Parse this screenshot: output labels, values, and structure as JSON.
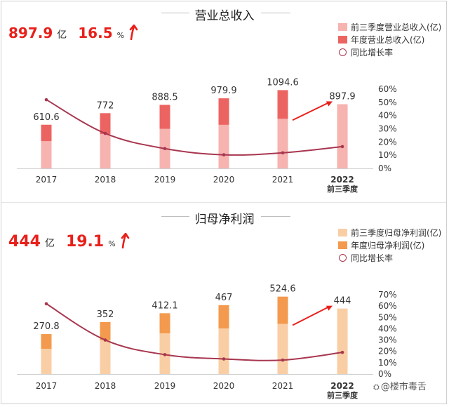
{
  "chart_data": [
    {
      "type": "bar",
      "title": "营业总收入",
      "headline": {
        "value": "897.9",
        "unit": "亿",
        "growth": "16.5",
        "growth_unit": "%"
      },
      "categories": [
        "2017",
        "2018",
        "2019",
        "2020",
        "2021",
        "2022"
      ],
      "category_sub": [
        "",
        "",
        "",
        "",
        "",
        "前三季度"
      ],
      "series": [
        {
          "name": "前三季度营业总收入(亿)",
          "values": [
            382,
            480,
            554,
            610,
            694,
            897.9
          ],
          "color": "#f6b3b0"
        },
        {
          "name": "年度营业总收入(亿)",
          "values": [
            610.6,
            772,
            888.5,
            979.9,
            1094.6,
            null
          ],
          "color": "#ec6461"
        },
        {
          "name": "同比增长率",
          "values": [
            52,
            26.5,
            15,
            10.3,
            11.8,
            16.5
          ],
          "color": "#a8364f",
          "type": "line",
          "axis": "right"
        }
      ],
      "data_labels": [
        "610.6",
        "772",
        "888.5",
        "979.9",
        "1094.6",
        "897.9"
      ],
      "y_right_ticks": [
        "0%",
        "10%",
        "20%",
        "30%",
        "40%",
        "50%",
        "60%"
      ],
      "y_right_range": [
        0,
        60
      ],
      "y_left_range": [
        0,
        1550
      ],
      "grid": false,
      "legend_position": "top-right",
      "annotation_color": "#e8201b"
    },
    {
      "type": "bar",
      "title": "归母净利润",
      "headline": {
        "value": "444",
        "unit": "亿",
        "growth": "19.1",
        "growth_unit": "%"
      },
      "categories": [
        "2017",
        "2018",
        "2019",
        "2020",
        "2021",
        "2022"
      ],
      "category_sub": [
        "",
        "",
        "",
        "",
        "",
        "前三季度"
      ],
      "series": [
        {
          "name": "前三季度归母净利润(亿)",
          "values": [
            171,
            229,
            276,
            309,
            340,
            444
          ],
          "color": "#f9cea5"
        },
        {
          "name": "年度归母净利润(亿)",
          "values": [
            270.8,
            352,
            412.1,
            467,
            524.6,
            null
          ],
          "color": "#f39a4e"
        },
        {
          "name": "同比增长率",
          "values": [
            62,
            30,
            17.1,
            13.3,
            12.3,
            19.1
          ],
          "color": "#a8364f",
          "type": "line",
          "axis": "right"
        }
      ],
      "data_labels": [
        "270.8",
        "352",
        "412.1",
        "467",
        "524.6",
        "444"
      ],
      "y_right_ticks": [
        "0%",
        "10%",
        "20%",
        "30%",
        "40%",
        "50%",
        "60%",
        "70%"
      ],
      "y_right_range": [
        0,
        70
      ],
      "y_left_range": [
        0,
        780
      ],
      "grid": false,
      "legend_position": "top-right",
      "annotation_color": "#e8201b"
    }
  ],
  "watermark": "@楼市毒舌",
  "colors": {
    "accent": "#e8201b",
    "line": "#a8364f",
    "text": "#333333"
  }
}
